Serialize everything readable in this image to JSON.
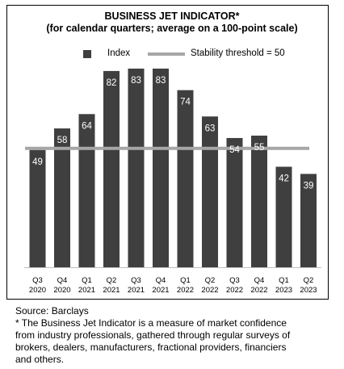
{
  "chart_data": {
    "type": "bar",
    "title": "BUSINESS JET INDICATOR*",
    "subtitle": "(for calendar quarters; average on a 100-point scale)",
    "categories": [
      [
        "Q3",
        "2020"
      ],
      [
        "Q4",
        "2020"
      ],
      [
        "Q1",
        "2021"
      ],
      [
        "Q2",
        "2021"
      ],
      [
        "Q3",
        "2021"
      ],
      [
        "Q4",
        "2021"
      ],
      [
        "Q1",
        "2022"
      ],
      [
        "Q2",
        "2022"
      ],
      [
        "Q3",
        "2022"
      ],
      [
        "Q4",
        "2022"
      ],
      [
        "Q1",
        "2023"
      ],
      [
        "Q2",
        "2023"
      ]
    ],
    "series": [
      {
        "name": "Index",
        "values": [
          49,
          58,
          64,
          82,
          83,
          83,
          74,
          63,
          54,
          55,
          42,
          39
        ]
      }
    ],
    "reference_line": {
      "name": "Stability threshold = 50",
      "value": 50
    },
    "ylim": [
      0,
      90
    ],
    "grid": false,
    "legend": "top",
    "colors": {
      "bar": "#3f3f3f",
      "threshold": "#a6a6a6",
      "label_text": "#ffffff"
    }
  },
  "footer": {
    "source": "Source: Barclays",
    "note_lines": [
      "* The Business Jet Indicator is a measure of market confidence",
      "from industry professionals, gathered through regular surveys of",
      "brokers, dealers, manufacturers, fractional providers, financiers",
      "and others."
    ]
  }
}
